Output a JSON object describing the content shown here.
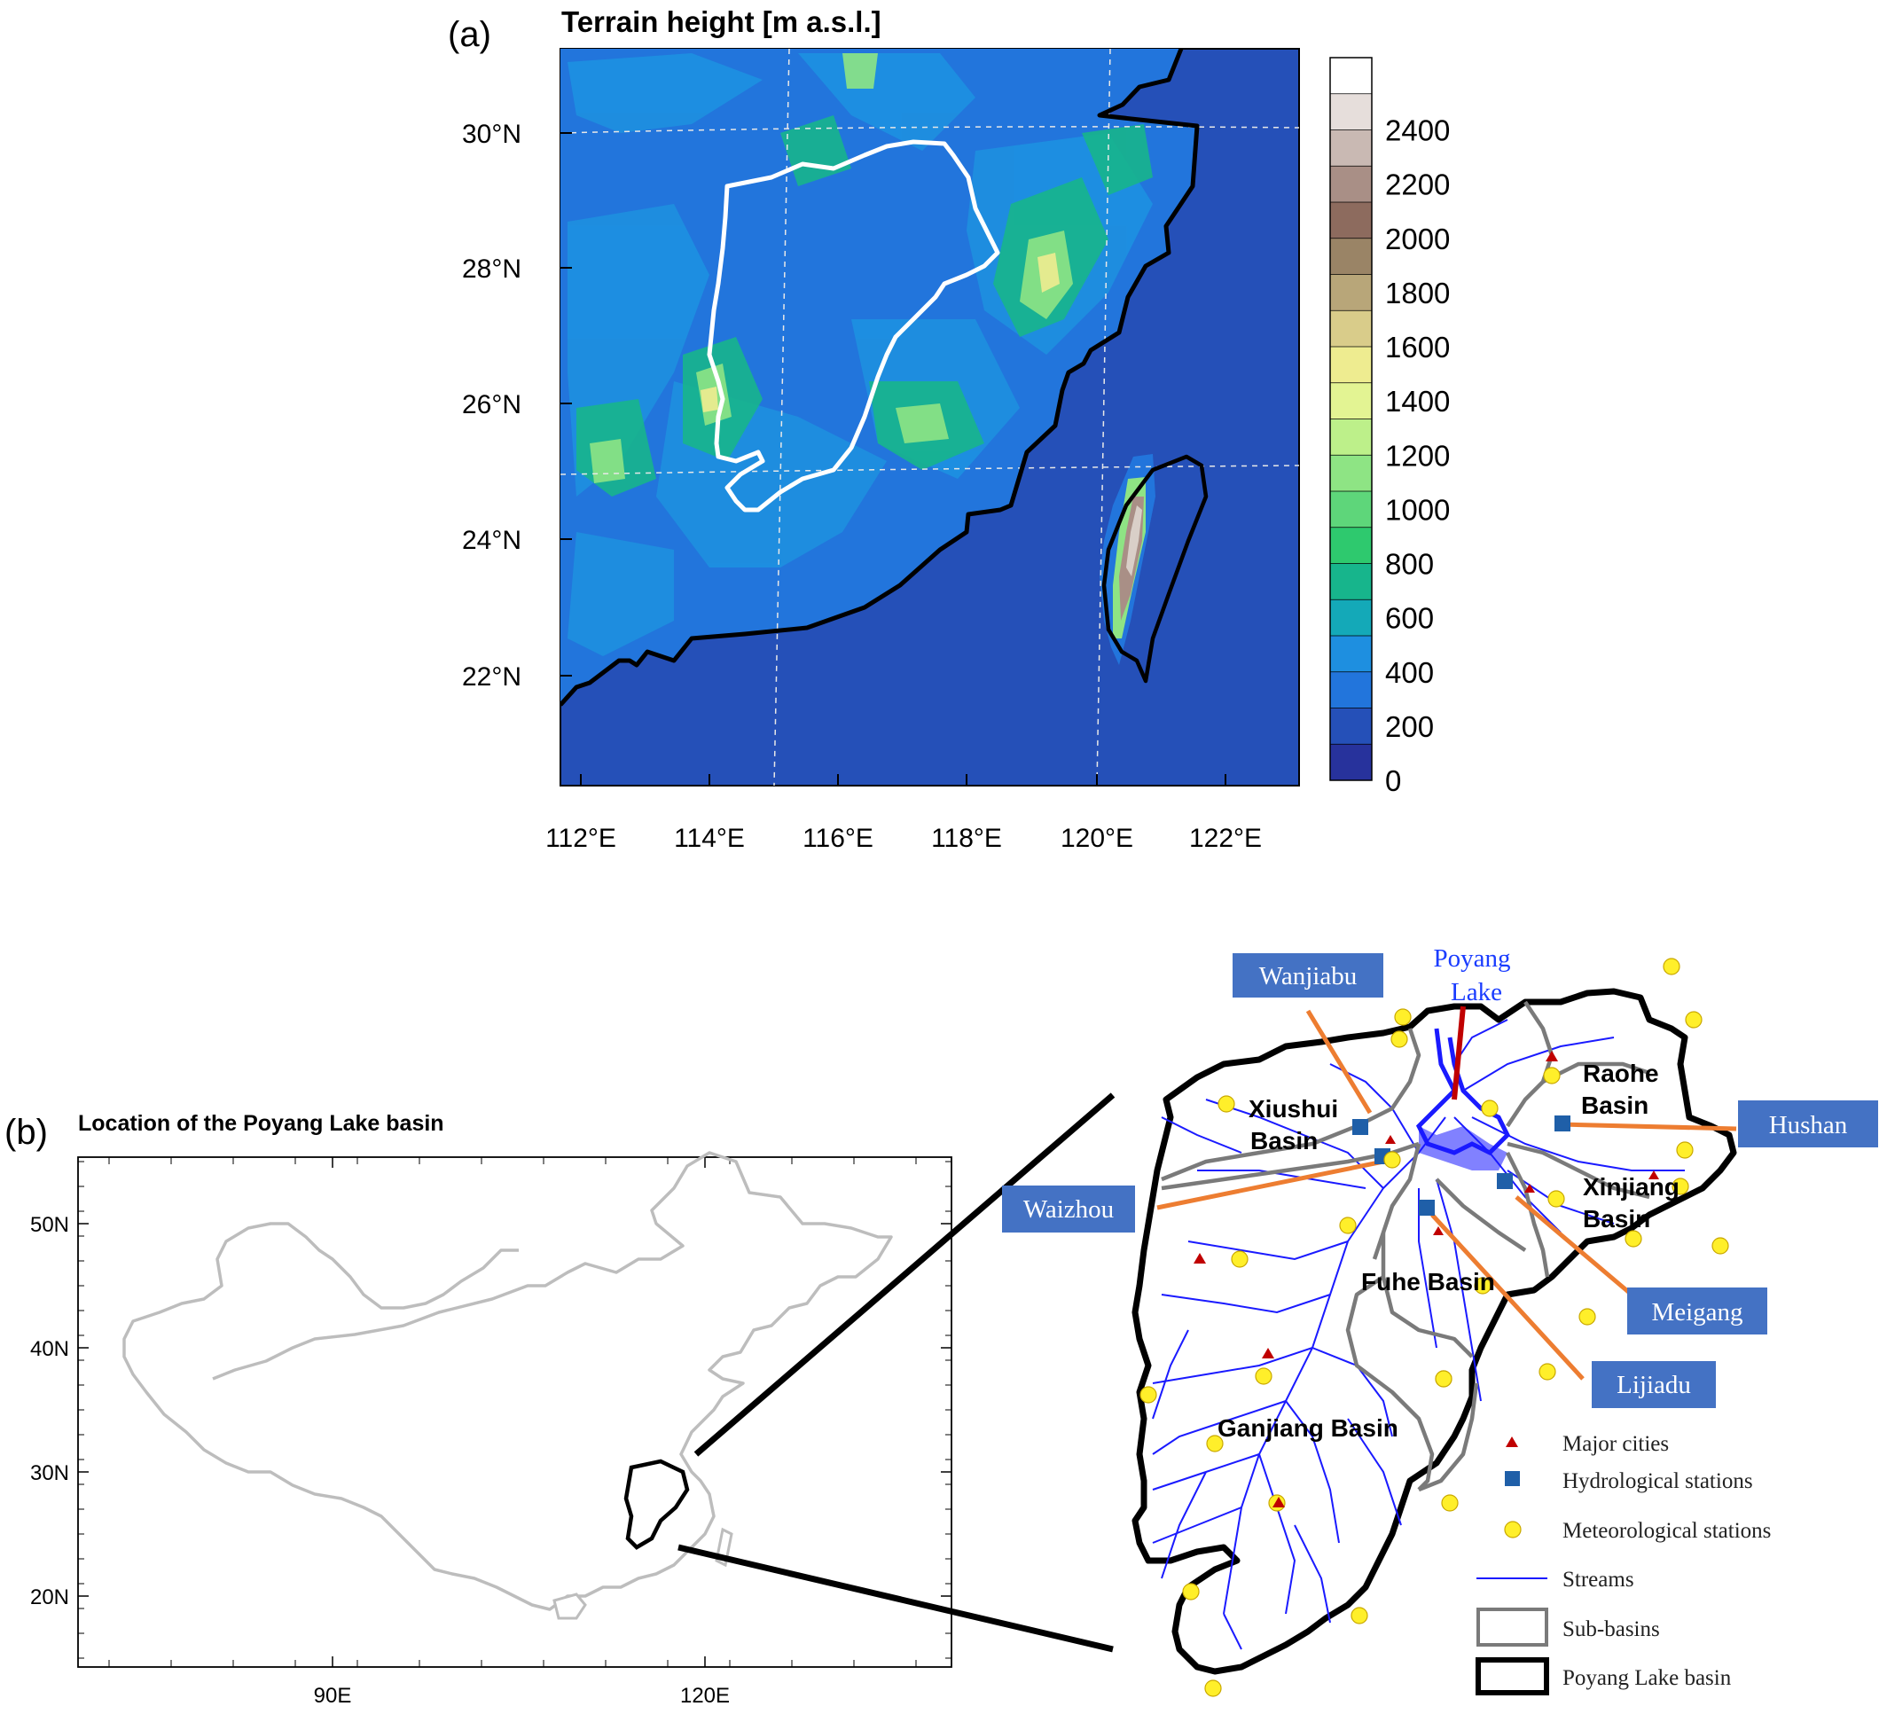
{
  "panel_a": {
    "label": "(a)",
    "title": "Terrain height [m a.s.l.]",
    "lat_ticks": [
      "30°N",
      "28°N",
      "26°N",
      "24°N",
      "22°N"
    ],
    "lon_ticks": [
      "112°E",
      "114°E",
      "116°E",
      "118°E",
      "120°E",
      "122°E"
    ],
    "colorbar": {
      "labels": [
        "2400",
        "2200",
        "2000",
        "1800",
        "1600",
        "1400",
        "1200",
        "1000",
        "800",
        "600",
        "400",
        "200",
        "0"
      ],
      "colors": [
        "#ffffff",
        "#e6dedb",
        "#c9b9b3",
        "#a98f86",
        "#8d6b5e",
        "#9a8466",
        "#b8a679",
        "#d9cc8a",
        "#eeec90",
        "#e3f493",
        "#bdf08a",
        "#8ee484",
        "#5ed67a",
        "#2ec96e",
        "#17b58c",
        "#14a9b8",
        "#1e8fe0",
        "#2275dc",
        "#2550b8",
        "#27329c"
      ]
    },
    "colors": {
      "ocean": "#2550b8",
      "lowland": "#2275dc",
      "hill": "#1e8fe0",
      "mid": "#17b58c",
      "high": "#8ee484",
      "peak": "#eeec90",
      "taiwan_peak": "#d9cfc8"
    }
  },
  "panel_b": {
    "label": "(b)",
    "title": "Location of the Poyang Lake basin",
    "lat_ticks": [
      "50N",
      "40N",
      "30N",
      "20N"
    ],
    "lon_ticks": [
      "90E",
      "120E"
    ]
  },
  "inset": {
    "callouts": [
      {
        "id": "wanjiabu",
        "text": "Wanjiabu"
      },
      {
        "id": "hushan",
        "text": "Hushan"
      },
      {
        "id": "waizhou",
        "text": "Waizhou"
      },
      {
        "id": "meigang",
        "text": "Meigang"
      },
      {
        "id": "lijiadu",
        "text": "Lijiadu"
      }
    ],
    "lake_label_1": "Poyang",
    "lake_label_2": "Lake",
    "basins": {
      "xiushui_1": "Xiushui",
      "xiushui_2": "Basin",
      "raohe_1": "Raohe",
      "raohe_2": "Basin",
      "xinjiang_1": "Xinjiang",
      "xinjiang_2": "Basin",
      "fuhe": "Fuhe Basin",
      "ganjiang": "Ganjiang Basin"
    },
    "legend": [
      {
        "id": "cities",
        "text": "Major cities"
      },
      {
        "id": "hydro",
        "text": "Hydrological stations"
      },
      {
        "id": "meteo",
        "text": "Meteorological stations"
      },
      {
        "id": "streams",
        "text": "Streams"
      },
      {
        "id": "subbasins",
        "text": "Sub-basins"
      },
      {
        "id": "basin",
        "text": "Poyang Lake basin"
      }
    ],
    "colors": {
      "callout_box": "#4472c4",
      "callout_line": "#ed7d31",
      "lake_line": "#c00000",
      "city": "#c00000",
      "hydro": "#1f5fa8",
      "meteo": "#ffef2a",
      "stream": "#1a1aff",
      "subbasin": "#7a7a7a"
    }
  }
}
